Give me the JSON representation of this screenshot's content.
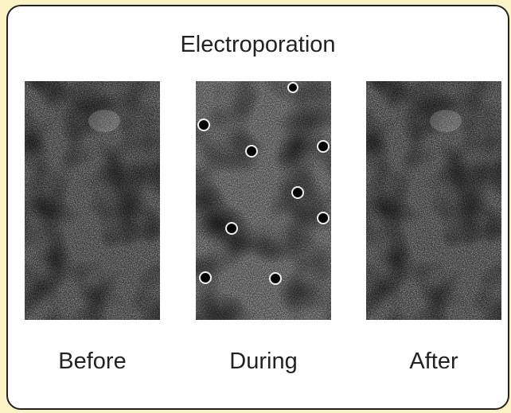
{
  "title": "Electroporation",
  "panels": [
    {
      "label": "Before"
    },
    {
      "label": "During"
    },
    {
      "label": "After"
    }
  ],
  "colors": {
    "background": "#fbf3c6",
    "panel": "#ffffff",
    "border": "#222222",
    "micrograph_dark": "#2a2a2a"
  }
}
